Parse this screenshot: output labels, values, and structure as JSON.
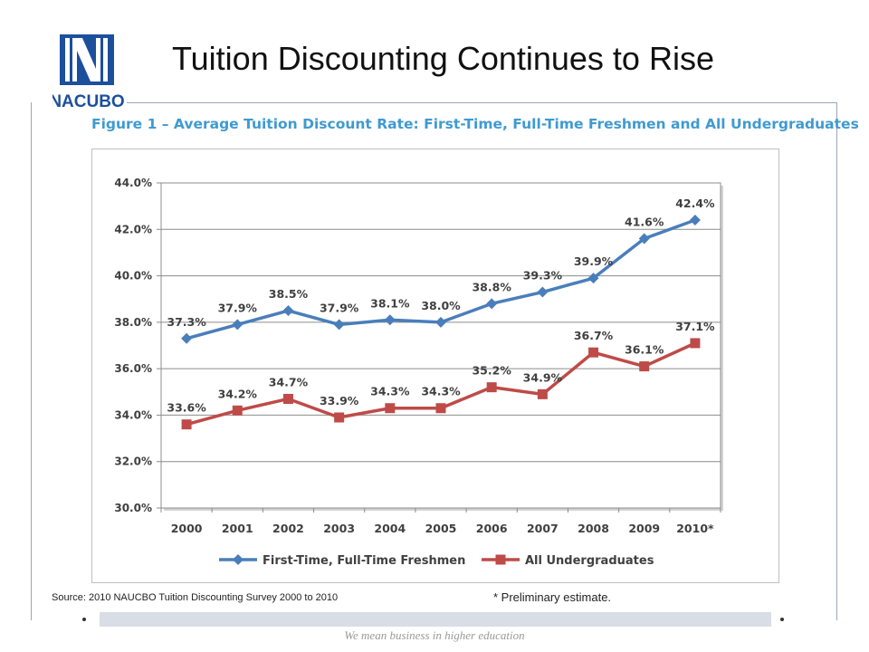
{
  "slide": {
    "title": "Tuition Discounting Continues to Rise",
    "logo_text": "NACUBO",
    "figure_caption": "Figure 1 – Average Tuition Discount Rate: First-Time, Full-Time Freshmen and All Undergraduates",
    "source_note": "Source: 2010 NAUCBO Tuition Discounting Survey 2000 to 2010",
    "footnote": "* Preliminary estimate.",
    "tagline": "We mean business in higher education",
    "colors": {
      "caption": "#3f9ad1",
      "logo": "#1c4f9c",
      "band": "#d9dde6"
    }
  },
  "chart_data": {
    "type": "line",
    "categories": [
      "2000",
      "2001",
      "2002",
      "2003",
      "2004",
      "2005",
      "2006",
      "2007",
      "2008",
      "2009",
      "2010*"
    ],
    "series": [
      {
        "name": "First-Time, Full-Time Freshmen",
        "values": [
          37.3,
          37.9,
          38.5,
          37.9,
          38.1,
          38.0,
          38.8,
          39.3,
          39.9,
          41.6,
          42.4
        ],
        "labels": [
          "37.3%",
          "37.9%",
          "38.5%",
          "37.9%",
          "38.1%",
          "38.0%",
          "38.8%",
          "39.3%",
          "39.9%",
          "41.6%",
          "42.4%"
        ],
        "color": "#4a7ebb",
        "marker": "diamond"
      },
      {
        "name": "All Undergraduates",
        "values": [
          33.6,
          34.2,
          34.7,
          33.9,
          34.3,
          34.3,
          35.2,
          34.9,
          36.7,
          36.1,
          37.1
        ],
        "labels": [
          "33.6%",
          "34.2%",
          "34.7%",
          "33.9%",
          "34.3%",
          "34.3%",
          "35.2%",
          "34.9%",
          "36.7%",
          "36.1%",
          "37.1%"
        ],
        "color": "#be4b48",
        "marker": "square"
      }
    ],
    "ylim": [
      30.0,
      44.0
    ],
    "yticks": [
      "30.0%",
      "32.0%",
      "34.0%",
      "36.0%",
      "38.0%",
      "40.0%",
      "42.0%",
      "44.0%"
    ],
    "grid": true,
    "legend": "bottom"
  }
}
